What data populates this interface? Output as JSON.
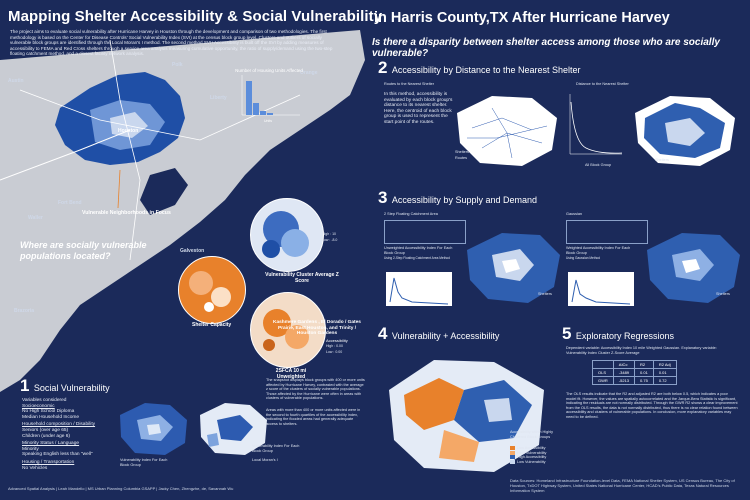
{
  "title_left": "Mapping Shelter Accessibility & Social Vulnerability",
  "title_right": "in Harris County,TX After Hurricane Harvey",
  "question": "Is there a disparity between shelter access among those who are socially vulnerable?",
  "intro": "The project aims to evaluate social vulnerability after Hurricane Harvey in Houston through the development and comparison of two methodologies. The first methodology is based on the Center for Disease Controls' Social Vulnerability Index (SVI) at the census block group level. Clusters and outliers of socially vulnerable block groups are identified through the Local Moran's I method. The second method SVI+Accessibility is built off the SVI by adding measures of accessibility to FEMA and Red Cross shelters through a service area analysis measuring cumulative opportunity, the ratio of supply/demand using the two-step floating catchment method, and a closest facility network analysis.",
  "map": {
    "labels": [
      "Austin",
      "Houston",
      "Galveston",
      "Fort Bend",
      "Waller",
      "Brazoria",
      "Polk",
      "Liberty",
      "Orange",
      "Harris"
    ],
    "focus_label": "Vulnerable Neighborhoods in Focus",
    "where_question": "Where are socially vulnerable populations located?",
    "hist_title": "Number of Housing Units Affected",
    "hist_xlabel": "Units",
    "hist_ylabel": "Number of Block Groups"
  },
  "circles": {
    "shelter_capacity": "Shelter Capacity",
    "cluster": "Vulnerability Cluster Average Z Score",
    "fca": "2SFCA 10 mi Unweighted",
    "accessibility": "Accessibility",
    "z_label_high": "High : 10",
    "z_label_low": "Low : -8.0",
    "acc_high": "High : 0.00",
    "acc_low": "Low : 0.00"
  },
  "cluster_caption": {
    "heading": "Kashmere Gardens , El Dorado / Gates Prairie, East Houston, and Trinity / Houston Gardens",
    "p1": "The snapshot displays block groups with 400 or more units affected by Hurricane Harvey, contrasted with the average z score of the clusters of socially vulnerable populations. Those affected by the Hurricane were often in areas with clusters of vulnerable populations.",
    "p2": "Areas with more than 400 or more units affected were in the second to fourth quartiles of the accessibility index, indicating the flooded areas had generally adequate access to shelters."
  },
  "section1": {
    "num": "1",
    "title": "Social Vulnerability",
    "vars_heading": "Variables considered",
    "groups": [
      {
        "name": "Socioeconomic",
        "items": [
          "No High School Diploma",
          "Median Household Income"
        ]
      },
      {
        "name": "Household composition / Disability",
        "items": [
          "Seniors (over age 65)",
          "Children (under age 6)"
        ]
      },
      {
        "name": "Minority Status / Language",
        "items": [
          "Minority",
          "Speaking English less than \"well\""
        ]
      },
      {
        "name": "Housing / Transportation",
        "items": [
          "No Vehicles"
        ]
      }
    ],
    "map1_label": "Vulnerability Index For Each Block Group",
    "map2_label": "Vulnerability Index For Each Block Group",
    "map2_sub": "Local Moran's I"
  },
  "section2": {
    "num": "2",
    "title": "Accessibility by Distance to the Nearest Shelter",
    "left_caption": "Routes to the Nearest Shelter",
    "right_caption": "Distance to the Nearest Shelter",
    "body": "In this method, accessibility is evaluated by each block group's distance to its nearest shelter. Here, the centroid of each block group is used to represent the start point of the routes.",
    "legend_shelters": "Shelters",
    "legend_routes": "Routes",
    "chart_xlabel": "All Block Group"
  },
  "section3": {
    "num": "3",
    "title": "Accessibility by Supply and Demand",
    "left_head": "2 Step Floating Catchment Area",
    "right_head": "Gaussian",
    "left_caption": "Unweighted Accessibility Index For Each Block Group",
    "left_sub": "Using 2-Step Floating Catchment Area Method",
    "right_caption": "Weighted Accessibility Index For Each Block Group",
    "right_sub": "Using Gaussian Method",
    "shelters": "Shelters"
  },
  "section4": {
    "num": "4",
    "title": "Vulnerability + Accessibility",
    "legend_title": "Accessibility within Highly Clustered Block Groups",
    "legend_items": [
      "Low Accessibility",
      "High Vulnerability",
      "High Accessibility",
      "Low Vulnerability"
    ]
  },
  "section5": {
    "num": "5",
    "title": "Exploratory Regressions",
    "intro": "Dependent variable: Accessibility Index 10 mile Weighted Gaussian. Explanatory variable: Vulnerability Index Cluster Z-Score Average",
    "table_header": [
      "",
      "AICc",
      "R2",
      "R2 Adj"
    ],
    "table_rows": [
      [
        "OLS",
        "-3489",
        "0.01",
        "0.01"
      ],
      [
        "GWR",
        "-5213",
        "0.75",
        "0.72"
      ]
    ],
    "body": "The OLS results indicate that the R2 and adjusted R2 are both below 0.5, which indicates a poor model fit. However, the values are spatially autocorrelated and the Jarque-Bera Statistic is significant, indicating the residuals are not normally distributed. Through the GWR R2 shows a clear improvement from the OLS results, the data is not normally distributed, thus there is no clear relation found between accessibility and clusters of vulnerable populations. In conclusion, more explanatory variables may need to be defined."
  },
  "footer": {
    "left": "Advanced Spatial Analysis | Leah Mandello | MS Urban Planning Columbia GSAPP | Jacky Chen, Zhengzhe, de, Savannah Wu",
    "right": "Data Sources: Homeland Infrastructure Foundation-level Data, FEMA National Shelter System, US Census Bureau, The City of Houston, TxDOT Highway System, United States National Hurricane Center, HCAD's Public Data, Texas Natural Resources Information System"
  },
  "colors": {
    "navy": "#1b2a5a",
    "orange": "#e8812b",
    "blue": "#2f5fb0",
    "light": "#c9d7ee"
  }
}
